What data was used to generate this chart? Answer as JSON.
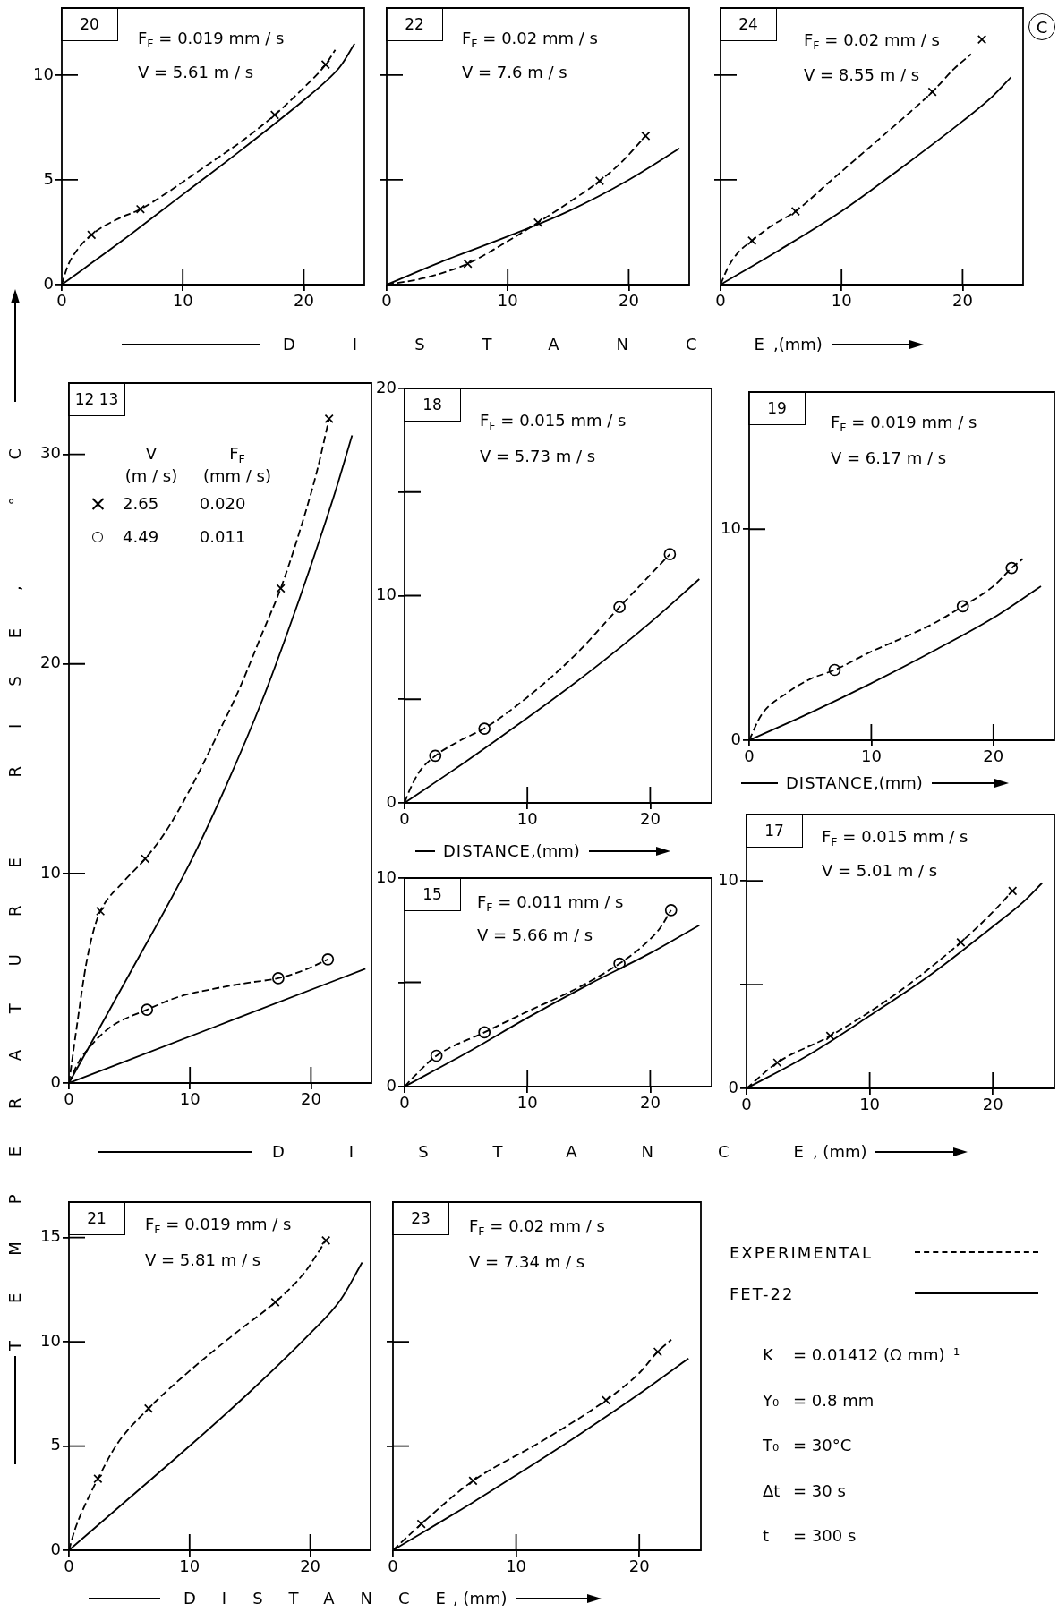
{
  "chart_data": [
    {
      "type": "line",
      "title": "20",
      "annotations": [
        "F$_{F}$ = 0.019 mm / s",
        "V = 5.61 m / s"
      ],
      "xlim": [
        0,
        25
      ],
      "xticks": [
        0,
        10,
        20
      ],
      "ylim": [
        0,
        13.2
      ],
      "yticks": [
        0,
        5,
        10
      ],
      "series": [
        {
          "line_style": "dashed",
          "color": "#000000",
          "x": [
            0,
            0.5,
            1.2,
            2.46,
            4.5,
            6.5,
            9,
            12,
            15,
            17.6,
            20,
            21.8,
            22.6
          ],
          "values": [
            0,
            0.9,
            1.6,
            2.38,
            3.1,
            3.6,
            4.5,
            5.7,
            6.9,
            8.1,
            9.4,
            10.5,
            11.2
          ]
        },
        {
          "type": "scatter",
          "marker": "cross",
          "color": "#000000",
          "x": [
            2.46,
            6.5,
            17.6,
            21.8
          ],
          "values": [
            2.38,
            3.6,
            8.1,
            10.5
          ]
        },
        {
          "line_style": "solid",
          "color": "#000000",
          "x": [
            0,
            5,
            10,
            15,
            20,
            22,
            23,
            24.2
          ],
          "values": [
            0,
            2.1,
            4.3,
            6.5,
            8.8,
            9.8,
            10.4,
            11.5
          ]
        }
      ]
    },
    {
      "type": "line",
      "title": "22",
      "annotations": [
        "F$_{F}$ = 0.02 mm / s",
        "V = 7.6 m / s"
      ],
      "xlabel": "DISTANCE,(mm)",
      "xlim": [
        0,
        25
      ],
      "xticks": [
        0,
        10,
        20
      ],
      "ylim": [
        0,
        13.2
      ],
      "yticks": [
        {
          "value": 5,
          "label": null
        },
        {
          "value": 10,
          "label": null
        }
      ],
      "tick_labels": "x",
      "series": [
        {
          "line_style": "dashed",
          "color": "#000000",
          "x": [
            0,
            3,
            6.7,
            9.5,
            12.5,
            15,
            17.6,
            19.5,
            21.4
          ],
          "values": [
            0,
            0.3,
            1.0,
            1.9,
            2.96,
            3.9,
            4.95,
            5.9,
            7.1
          ]
        },
        {
          "type": "scatter",
          "marker": "cross",
          "color": "#000000",
          "x": [
            6.7,
            12.5,
            17.6,
            21.4
          ],
          "values": [
            1.0,
            2.96,
            4.95,
            7.1
          ]
        },
        {
          "line_style": "solid",
          "color": "#000000",
          "x": [
            0,
            5,
            10,
            15,
            20,
            24.2
          ],
          "values": [
            0,
            1.2,
            2.3,
            3.5,
            5.0,
            6.5
          ]
        }
      ]
    },
    {
      "type": "line",
      "title": "24",
      "annotations": [
        "F$_{F}$ = 0.02 mm / s",
        "V = 8.55 m / s",
        "C"
      ],
      "xlim": [
        0,
        25
      ],
      "xticks": [
        0,
        10,
        20
      ],
      "ylim": [
        0,
        13.2
      ],
      "yticks": [
        {
          "value": 5,
          "label": null
        },
        {
          "value": 10,
          "label": null
        }
      ],
      "tick_labels": "x",
      "series": [
        {
          "line_style": "dashed",
          "color": "#000000",
          "x": [
            0,
            0.6,
            1.4,
            2.6,
            4.2,
            6.2,
            9,
            12,
            15,
            17.5,
            19.3,
            20.7
          ],
          "values": [
            0,
            0.8,
            1.5,
            2.1,
            2.8,
            3.5,
            4.9,
            6.4,
            7.9,
            9.2,
            10.3,
            11.0
          ]
        },
        {
          "type": "scatter",
          "marker": "cross",
          "color": "#000000",
          "x": [
            2.6,
            6.2,
            17.5,
            21.6
          ],
          "values": [
            2.1,
            3.5,
            9.2,
            11.7
          ]
        },
        {
          "line_style": "solid",
          "color": "#000000",
          "x": [
            0,
            5,
            10,
            15,
            20,
            22.5,
            24
          ],
          "values": [
            0,
            1.7,
            3.5,
            5.6,
            7.8,
            9.0,
            9.9
          ]
        }
      ]
    },
    {
      "type": "line",
      "title": "12 13",
      "ylabel": "TEMPERATURE RISE, °C",
      "legend": "top left",
      "legend_title": "V  F$_{F}$\n(m / s)  (mm / s)",
      "xlim": [
        0,
        25
      ],
      "xticks": [
        0,
        10,
        20
      ],
      "ylim": [
        0,
        33.4
      ],
      "yticks": [
        0,
        10,
        20,
        30
      ],
      "series": [
        {
          "line_style": "dashed",
          "color": "#000000",
          "x": [
            0,
            0.8,
            1.4,
            2.0,
            2.6,
            4.5,
            6.3,
            8,
            10,
            12,
            14,
            16,
            17.5,
            19,
            20.5,
            21.5
          ],
          "values": [
            0,
            3.3,
            5.6,
            7.2,
            8.2,
            9.6,
            10.7,
            12,
            14,
            16.3,
            18.7,
            21.5,
            23.6,
            26.2,
            29.2,
            31.7
          ]
        },
        {
          "type": "scatter",
          "marker": "cross",
          "name": "2.65 0.020",
          "color": "#000000",
          "x": [
            2.6,
            6.3,
            17.5,
            21.5
          ],
          "values": [
            8.2,
            10.7,
            23.6,
            31.7
          ]
        },
        {
          "line_style": "solid",
          "color": "#000000",
          "x": [
            0,
            5,
            10,
            13,
            16,
            18,
            20,
            22,
            23.4
          ],
          "values": [
            0,
            5.2,
            10.5,
            14.2,
            18.3,
            21.4,
            24.7,
            28.2,
            30.9
          ]
        },
        {
          "line_style": "dashed",
          "color": "#000000",
          "x": [
            0,
            0.8,
            2,
            3.5,
            6.45,
            9,
            12,
            15,
            17.3,
            19.5,
            21.4
          ],
          "values": [
            0,
            1.0,
            1.9,
            2.7,
            3.5,
            4.1,
            4.5,
            4.8,
            5.0,
            5.4,
            5.9
          ]
        },
        {
          "type": "scatter",
          "marker": "circle",
          "name": "4.49 0.011",
          "color": "#000000",
          "x": [
            6.45,
            17.3,
            21.4
          ],
          "values": [
            3.5,
            5.0,
            5.9
          ]
        },
        {
          "line_style": "solid",
          "color": "#000000",
          "x": [
            0,
            12,
            24.5
          ],
          "values": [
            0,
            2.67,
            5.45
          ]
        }
      ]
    },
    {
      "type": "line",
      "title": "18",
      "annotations": [
        "F$_{F}$ = 0.015 mm / s",
        "V = 5.73 m / s"
      ],
      "xlabel": "DISTANCE,(mm)",
      "xlim": [
        0,
        25
      ],
      "xticks": [
        0,
        10,
        20
      ],
      "ylim": [
        0,
        20
      ],
      "yticks": [
        0,
        {
          "value": 5,
          "label": null
        },
        10,
        {
          "value": 15,
          "label": null
        },
        20
      ],
      "series": [
        {
          "line_style": "dashed",
          "color": "#000000",
          "x": [
            0,
            0.4,
            1.2,
            2.5,
            4.5,
            6.5,
            10,
            14,
            17.5,
            20,
            21.6
          ],
          "values": [
            0,
            0.6,
            1.5,
            2.27,
            3.0,
            3.6,
            5.1,
            7.2,
            9.45,
            11.0,
            12.0
          ]
        },
        {
          "type": "scatter",
          "marker": "circle",
          "color": "#000000",
          "x": [
            2.5,
            6.5,
            17.5,
            21.6
          ],
          "values": [
            2.27,
            3.58,
            9.45,
            12.0
          ]
        },
        {
          "line_style": "solid",
          "color": "#000000",
          "x": [
            0,
            5,
            10,
            15,
            20,
            24
          ],
          "values": [
            0,
            2.0,
            4.1,
            6.3,
            8.7,
            10.8
          ]
        }
      ]
    },
    {
      "type": "line",
      "title": "19",
      "annotations": [
        "F$_{F}$ = 0.019 mm / s",
        "V = 6.17 m / s"
      ],
      "xlabel": "DISTANCE,(mm)",
      "xlim": [
        0,
        25
      ],
      "xticks": [
        0,
        10,
        20
      ],
      "ylim": [
        0,
        16.5
      ],
      "yticks": [
        0,
        10
      ],
      "series": [
        {
          "line_style": "dashed",
          "color": "#000000",
          "x": [
            0,
            1,
            3,
            5,
            7,
            10,
            12,
            15,
            17.5,
            20,
            21.5,
            22.4
          ],
          "values": [
            0,
            1.2,
            2.2,
            2.9,
            3.33,
            4.2,
            4.7,
            5.5,
            6.35,
            7.3,
            8.16,
            8.6
          ]
        },
        {
          "type": "scatter",
          "marker": "circle",
          "color": "#000000",
          "x": [
            7,
            17.5,
            21.5
          ],
          "values": [
            3.33,
            6.35,
            8.16
          ]
        },
        {
          "line_style": "solid",
          "color": "#000000",
          "x": [
            0,
            5,
            10,
            15,
            20,
            23.9
          ],
          "values": [
            0,
            1.3,
            2.7,
            4.2,
            5.8,
            7.3
          ]
        }
      ]
    },
    {
      "type": "line",
      "title": "15",
      "annotations": [
        "F$_{F}$ = 0.011 mm / s",
        "V = 5.66 m / s"
      ],
      "xlabel": "DISTANCE, (mm)",
      "xlim": [
        0,
        25
      ],
      "xticks": [
        0,
        10,
        20
      ],
      "ylim": [
        0,
        10
      ],
      "yticks": [
        0,
        {
          "value": 5,
          "label": null
        },
        10
      ],
      "series": [
        {
          "line_style": "dashed",
          "color": "#000000",
          "x": [
            0,
            0.8,
            2.6,
            6.5,
            10,
            14,
            17.5,
            19.5,
            20.8,
            21.7
          ],
          "values": [
            0,
            0.5,
            1.48,
            2.6,
            3.6,
            4.7,
            5.9,
            6.8,
            7.6,
            8.46
          ]
        },
        {
          "type": "scatter",
          "marker": "circle",
          "color": "#000000",
          "x": [
            2.6,
            6.5,
            17.5,
            21.7
          ],
          "values": [
            1.48,
            2.6,
            5.9,
            8.46
          ]
        },
        {
          "line_style": "solid",
          "color": "#000000",
          "x": [
            0,
            5,
            10,
            15,
            20,
            24
          ],
          "values": [
            0,
            1.6,
            3.3,
            4.9,
            6.4,
            7.74
          ]
        }
      ]
    },
    {
      "type": "line",
      "title": "17",
      "annotations": [
        "F$_{F}$ = 0.015 mm / s",
        "V = 5.01 m / s"
      ],
      "xlim": [
        0,
        25
      ],
      "xticks": [
        0,
        10,
        20
      ],
      "ylim": [
        0,
        13.2
      ],
      "yticks": [
        0,
        {
          "value": 5,
          "label": null
        },
        10
      ],
      "series": [
        {
          "line_style": "dashed",
          "color": "#000000",
          "x": [
            0,
            2.5,
            6.8,
            12,
            17.4,
            20,
            21.6
          ],
          "values": [
            0,
            1.24,
            2.53,
            4.5,
            7.04,
            8.5,
            9.52
          ]
        },
        {
          "type": "scatter",
          "marker": "cross",
          "color": "#000000",
          "x": [
            2.5,
            6.8,
            17.4,
            21.6
          ],
          "values": [
            1.24,
            2.53,
            7.04,
            9.52
          ]
        },
        {
          "line_style": "solid",
          "color": "#000000",
          "x": [
            0,
            5,
            10,
            15,
            20,
            22.5,
            24
          ],
          "values": [
            0,
            1.6,
            3.5,
            5.5,
            7.8,
            9.0,
            9.9
          ]
        }
      ]
    },
    {
      "type": "line",
      "title": "21",
      "annotations": [
        "F$_{F}$ = 0.019 mm / s",
        "V = 5.81 m / s"
      ],
      "xlabel": "DISTANCE, (mm)",
      "xlim": [
        0,
        25
      ],
      "xticks": [
        0,
        10,
        20
      ],
      "ylim": [
        0,
        16.7
      ],
      "yticks": [
        0,
        5,
        10,
        15
      ],
      "series": [
        {
          "line_style": "dashed",
          "color": "#000000",
          "x": [
            0,
            0.5,
            1.2,
            2.4,
            4,
            6.6,
            10,
            14,
            17.1,
            19.5,
            21.3
          ],
          "values": [
            0,
            1.0,
            2.0,
            3.43,
            5.1,
            6.8,
            8.6,
            10.5,
            11.9,
            13.3,
            14.86
          ]
        },
        {
          "type": "scatter",
          "marker": "cross",
          "color": "#000000",
          "x": [
            2.4,
            6.6,
            17.1,
            21.3
          ],
          "values": [
            3.43,
            6.8,
            11.9,
            14.86
          ]
        },
        {
          "line_style": "solid",
          "color": "#000000",
          "x": [
            0,
            5,
            10,
            15,
            20,
            22.5,
            24.3
          ],
          "values": [
            0,
            2.5,
            5.0,
            7.6,
            10.4,
            12.0,
            13.8
          ]
        }
      ]
    },
    {
      "type": "line",
      "title": "23",
      "annotations": [
        "F$_{F}$ = 0.02 mm / s",
        "V = 7.34 m / s"
      ],
      "legend": "right",
      "xlim": [
        0,
        25
      ],
      "xticks": [
        0,
        10,
        20
      ],
      "ylim": [
        0,
        16.7
      ],
      "yticks": [
        {
          "value": 5,
          "label": null
        },
        {
          "value": 10,
          "label": null
        }
      ],
      "tick_labels": "x",
      "series": [
        {
          "name": "EXPERIMENTAL",
          "line_style": "dashed",
          "color": "#000000",
          "x": [
            0,
            2.3,
            6.5,
            12,
            17.3,
            20,
            21.5,
            22.6
          ],
          "values": [
            0,
            1.26,
            3.33,
            5.2,
            7.2,
            8.5,
            9.52,
            10.1
          ]
        },
        {
          "type": "scatter",
          "marker": "cross",
          "color": "#000000",
          "x": [
            2.3,
            6.5,
            17.3,
            21.5
          ],
          "values": [
            1.26,
            3.33,
            7.2,
            9.52
          ]
        },
        {
          "name": "FET-22",
          "line_style": "solid",
          "color": "#000000",
          "x": [
            0,
            6.5,
            10,
            15,
            20,
            24
          ],
          "values": [
            0,
            2.3,
            3.6,
            5.5,
            7.5,
            9.2
          ]
        }
      ]
    },
    {
      "type": "other",
      "annotations": [
        "K = 0.01412 (Ω mm)⁻¹",
        "Y₀ = 0.8 mm",
        "T₀ = 30°C",
        "Δt = 30 s",
        "t = 300 s"
      ]
    }
  ]
}
